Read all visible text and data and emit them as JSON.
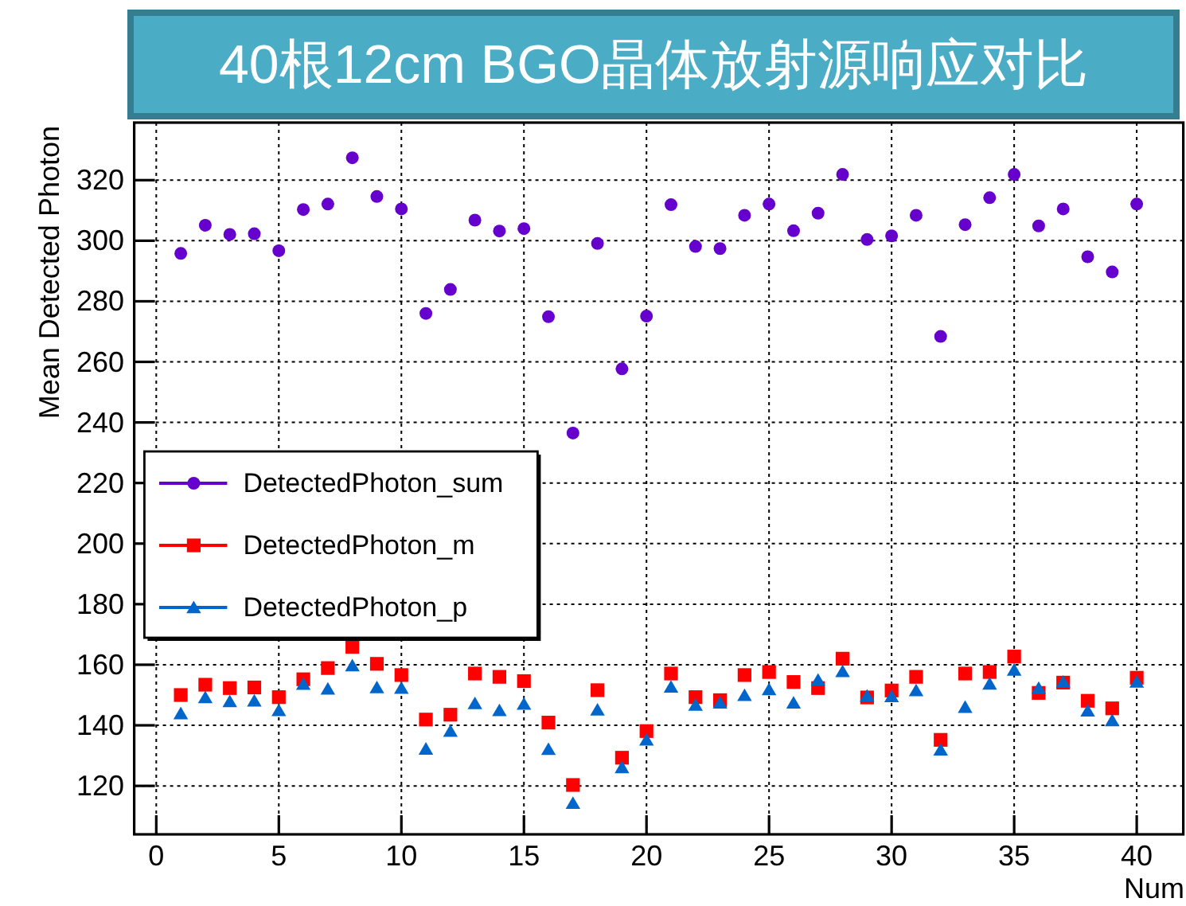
{
  "chart_data": {
    "type": "scatter",
    "title": "40根12cm BGO晶体放射源响应对比",
    "xlabel": "Num",
    "ylabel": "Mean Detected Photon",
    "x": [
      1,
      2,
      3,
      4,
      5,
      6,
      7,
      8,
      9,
      10,
      11,
      12,
      13,
      14,
      15,
      16,
      17,
      18,
      19,
      20,
      21,
      22,
      23,
      24,
      25,
      26,
      27,
      28,
      29,
      30,
      31,
      32,
      33,
      34,
      35,
      36,
      37,
      38,
      39,
      40
    ],
    "series": [
      {
        "name": "DetectedPhoton_sum",
        "color": "#6600cc",
        "marker": "circle",
        "values": [
          295.8,
          305.1,
          302.1,
          302.3,
          296.7,
          310.3,
          312.1,
          327.4,
          314.6,
          310.5,
          276.0,
          283.9,
          306.8,
          303.2,
          304.0,
          274.9,
          236.5,
          299.1,
          257.7,
          275.1,
          311.9,
          298.1,
          297.4,
          308.4,
          312.1,
          303.3,
          309.1,
          321.9,
          300.4,
          301.6,
          308.4,
          268.4,
          305.3,
          314.2,
          321.9,
          304.9,
          310.5,
          294.7,
          289.7,
          312.1
        ]
      },
      {
        "name": "DetectedPhoton_m",
        "color": "#ff0000",
        "marker": "square",
        "values": [
          150.0,
          153.4,
          152.3,
          152.5,
          149.3,
          155.2,
          158.9,
          165.9,
          160.3,
          156.6,
          141.9,
          143.5,
          157.1,
          156.0,
          154.6,
          140.9,
          120.3,
          151.6,
          129.3,
          138.1,
          157.1,
          149.3,
          148.3,
          156.6,
          157.6,
          154.3,
          152.3,
          162.0,
          149.2,
          151.5,
          156.0,
          135.2,
          157.1,
          157.6,
          162.7,
          150.7,
          154.1,
          148.1,
          145.6,
          155.7
        ]
      },
      {
        "name": "DetectedPhoton_p",
        "color": "#0066cc",
        "marker": "triangle",
        "values": [
          143.9,
          149.2,
          147.9,
          148.1,
          144.9,
          153.6,
          152.0,
          159.7,
          152.5,
          152.3,
          132.2,
          138.1,
          147.2,
          144.9,
          147.0,
          132.1,
          114.3,
          145.1,
          126.1,
          135.2,
          152.7,
          146.7,
          147.4,
          149.9,
          151.8,
          147.4,
          155.0,
          157.8,
          149.7,
          149.5,
          151.5,
          131.9,
          146.0,
          153.7,
          158.3,
          152.3,
          154.3,
          144.8,
          141.6,
          154.3
        ]
      }
    ],
    "xlim": [
      -0.9,
      41.9
    ],
    "ylim": [
      104,
      339
    ],
    "xticks": [
      0,
      5,
      10,
      15,
      20,
      25,
      30,
      35,
      40
    ],
    "yticks": [
      120,
      140,
      160,
      180,
      200,
      220,
      240,
      260,
      280,
      300,
      320
    ],
    "grid": true,
    "legend": "left"
  }
}
